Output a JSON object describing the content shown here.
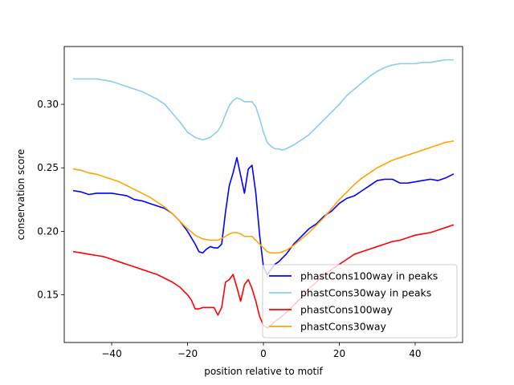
{
  "chart_data": {
    "type": "line",
    "title": "",
    "xlabel": "position relative to motif",
    "ylabel": "conservation score",
    "xlim": [
      -52.5,
      52.5
    ],
    "ylim": [
      0.1125,
      0.3455
    ],
    "xticks": [
      -40,
      -20,
      0,
      20,
      40
    ],
    "xtick_labels": [
      "−40",
      "−20",
      "0",
      "20",
      "40"
    ],
    "yticks": [
      0.15,
      0.2,
      0.25,
      0.3
    ],
    "ytick_labels": [
      "0.15",
      "0.20",
      "0.25",
      "0.30"
    ],
    "legend_position": "lower-right",
    "series": [
      {
        "name": "phastCons100way in peaks",
        "color": "#0000ff",
        "points": [
          [
            -50,
            0.232
          ],
          [
            -48,
            0.231
          ],
          [
            -46,
            0.229
          ],
          [
            -44,
            0.23
          ],
          [
            -42,
            0.23
          ],
          [
            -40,
            0.23
          ],
          [
            -38,
            0.229
          ],
          [
            -36,
            0.228
          ],
          [
            -34,
            0.225
          ],
          [
            -32,
            0.224
          ],
          [
            -30,
            0.222
          ],
          [
            -28,
            0.22
          ],
          [
            -26,
            0.218
          ],
          [
            -24,
            0.214
          ],
          [
            -22,
            0.208
          ],
          [
            -20,
            0.2
          ],
          [
            -18,
            0.19
          ],
          [
            -17,
            0.184
          ],
          [
            -16,
            0.183
          ],
          [
            -15,
            0.186
          ],
          [
            -14,
            0.188
          ],
          [
            -13,
            0.187
          ],
          [
            -12,
            0.187
          ],
          [
            -11,
            0.19
          ],
          [
            -10,
            0.215
          ],
          [
            -9,
            0.236
          ],
          [
            -8,
            0.246
          ],
          [
            -7,
            0.258
          ],
          [
            -6,
            0.244
          ],
          [
            -5,
            0.23
          ],
          [
            -4,
            0.249
          ],
          [
            -3,
            0.252
          ],
          [
            -2,
            0.23
          ],
          [
            -1,
            0.197
          ],
          [
            0,
            0.172
          ],
          [
            1,
            0.166
          ],
          [
            2,
            0.17
          ],
          [
            3,
            0.174
          ],
          [
            4,
            0.176
          ],
          [
            6,
            0.182
          ],
          [
            8,
            0.19
          ],
          [
            10,
            0.196
          ],
          [
            12,
            0.202
          ],
          [
            14,
            0.206
          ],
          [
            16,
            0.212
          ],
          [
            18,
            0.216
          ],
          [
            20,
            0.222
          ],
          [
            22,
            0.226
          ],
          [
            24,
            0.228
          ],
          [
            26,
            0.232
          ],
          [
            28,
            0.236
          ],
          [
            30,
            0.24
          ],
          [
            32,
            0.241
          ],
          [
            34,
            0.241
          ],
          [
            36,
            0.238
          ],
          [
            38,
            0.238
          ],
          [
            40,
            0.239
          ],
          [
            42,
            0.24
          ],
          [
            44,
            0.241
          ],
          [
            46,
            0.24
          ],
          [
            48,
            0.242
          ],
          [
            50,
            0.245
          ]
        ]
      },
      {
        "name": "phastCons30way in peaks",
        "color": "#87ceeb",
        "points": [
          [
            -50,
            0.32
          ],
          [
            -48,
            0.32
          ],
          [
            -46,
            0.32
          ],
          [
            -44,
            0.32
          ],
          [
            -42,
            0.319
          ],
          [
            -40,
            0.318
          ],
          [
            -38,
            0.316
          ],
          [
            -36,
            0.314
          ],
          [
            -34,
            0.312
          ],
          [
            -32,
            0.31
          ],
          [
            -30,
            0.307
          ],
          [
            -28,
            0.304
          ],
          [
            -26,
            0.3
          ],
          [
            -24,
            0.293
          ],
          [
            -22,
            0.286
          ],
          [
            -20,
            0.278
          ],
          [
            -18,
            0.274
          ],
          [
            -16,
            0.272
          ],
          [
            -14,
            0.274
          ],
          [
            -12,
            0.279
          ],
          [
            -11,
            0.284
          ],
          [
            -10,
            0.292
          ],
          [
            -9,
            0.299
          ],
          [
            -8,
            0.303
          ],
          [
            -7,
            0.305
          ],
          [
            -6,
            0.304
          ],
          [
            -5,
            0.302
          ],
          [
            -4,
            0.302
          ],
          [
            -3,
            0.302
          ],
          [
            -2,
            0.298
          ],
          [
            -1,
            0.289
          ],
          [
            0,
            0.278
          ],
          [
            1,
            0.27
          ],
          [
            2,
            0.267
          ],
          [
            3,
            0.265
          ],
          [
            4,
            0.265
          ],
          [
            5,
            0.264
          ],
          [
            6,
            0.265
          ],
          [
            8,
            0.268
          ],
          [
            10,
            0.272
          ],
          [
            12,
            0.276
          ],
          [
            14,
            0.282
          ],
          [
            16,
            0.288
          ],
          [
            18,
            0.294
          ],
          [
            20,
            0.3
          ],
          [
            22,
            0.307
          ],
          [
            24,
            0.312
          ],
          [
            26,
            0.317
          ],
          [
            28,
            0.322
          ],
          [
            30,
            0.326
          ],
          [
            32,
            0.329
          ],
          [
            34,
            0.331
          ],
          [
            36,
            0.332
          ],
          [
            38,
            0.332
          ],
          [
            40,
            0.332
          ],
          [
            42,
            0.333
          ],
          [
            44,
            0.333
          ],
          [
            46,
            0.334
          ],
          [
            48,
            0.335
          ],
          [
            50,
            0.335
          ]
        ]
      },
      {
        "name": "phastCons100way",
        "color": "#ff0000",
        "points": [
          [
            -50,
            0.184
          ],
          [
            -48,
            0.183
          ],
          [
            -46,
            0.182
          ],
          [
            -44,
            0.181
          ],
          [
            -42,
            0.18
          ],
          [
            -40,
            0.178
          ],
          [
            -38,
            0.176
          ],
          [
            -36,
            0.174
          ],
          [
            -34,
            0.172
          ],
          [
            -32,
            0.17
          ],
          [
            -30,
            0.168
          ],
          [
            -28,
            0.166
          ],
          [
            -26,
            0.163
          ],
          [
            -24,
            0.16
          ],
          [
            -22,
            0.156
          ],
          [
            -20,
            0.15
          ],
          [
            -19,
            0.146
          ],
          [
            -18,
            0.139
          ],
          [
            -17,
            0.139
          ],
          [
            -16,
            0.14
          ],
          [
            -15,
            0.14
          ],
          [
            -14,
            0.14
          ],
          [
            -13,
            0.14
          ],
          [
            -12,
            0.134
          ],
          [
            -11,
            0.14
          ],
          [
            -10,
            0.16
          ],
          [
            -9,
            0.162
          ],
          [
            -8,
            0.166
          ],
          [
            -7,
            0.156
          ],
          [
            -6,
            0.145
          ],
          [
            -5,
            0.158
          ],
          [
            -4,
            0.162
          ],
          [
            -3,
            0.155
          ],
          [
            -2,
            0.145
          ],
          [
            -1,
            0.133
          ],
          [
            0,
            0.126
          ],
          [
            1,
            0.124
          ],
          [
            2,
            0.126
          ],
          [
            3,
            0.129
          ],
          [
            4,
            0.131
          ],
          [
            6,
            0.136
          ],
          [
            8,
            0.142
          ],
          [
            10,
            0.148
          ],
          [
            12,
            0.155
          ],
          [
            14,
            0.16
          ],
          [
            16,
            0.166
          ],
          [
            18,
            0.17
          ],
          [
            20,
            0.174
          ],
          [
            22,
            0.178
          ],
          [
            24,
            0.182
          ],
          [
            26,
            0.184
          ],
          [
            28,
            0.186
          ],
          [
            30,
            0.188
          ],
          [
            32,
            0.19
          ],
          [
            34,
            0.192
          ],
          [
            36,
            0.193
          ],
          [
            38,
            0.195
          ],
          [
            40,
            0.197
          ],
          [
            42,
            0.198
          ],
          [
            44,
            0.199
          ],
          [
            46,
            0.201
          ],
          [
            48,
            0.203
          ],
          [
            50,
            0.205
          ]
        ]
      },
      {
        "name": "phastCons30way",
        "color": "#ffa500",
        "points": [
          [
            -50,
            0.249
          ],
          [
            -48,
            0.248
          ],
          [
            -46,
            0.246
          ],
          [
            -44,
            0.245
          ],
          [
            -42,
            0.243
          ],
          [
            -40,
            0.241
          ],
          [
            -38,
            0.239
          ],
          [
            -36,
            0.236
          ],
          [
            -34,
            0.233
          ],
          [
            -32,
            0.23
          ],
          [
            -30,
            0.227
          ],
          [
            -28,
            0.223
          ],
          [
            -26,
            0.219
          ],
          [
            -24,
            0.214
          ],
          [
            -22,
            0.208
          ],
          [
            -20,
            0.202
          ],
          [
            -18,
            0.197
          ],
          [
            -16,
            0.194
          ],
          [
            -14,
            0.193
          ],
          [
            -12,
            0.193
          ],
          [
            -10,
            0.196
          ],
          [
            -9,
            0.198
          ],
          [
            -8,
            0.199
          ],
          [
            -7,
            0.199
          ],
          [
            -6,
            0.198
          ],
          [
            -5,
            0.196
          ],
          [
            -4,
            0.196
          ],
          [
            -3,
            0.196
          ],
          [
            -2,
            0.193
          ],
          [
            -1,
            0.19
          ],
          [
            0,
            0.187
          ],
          [
            1,
            0.184
          ],
          [
            2,
            0.183
          ],
          [
            3,
            0.183
          ],
          [
            4,
            0.183
          ],
          [
            5,
            0.184
          ],
          [
            6,
            0.185
          ],
          [
            8,
            0.189
          ],
          [
            10,
            0.194
          ],
          [
            12,
            0.199
          ],
          [
            14,
            0.205
          ],
          [
            16,
            0.211
          ],
          [
            18,
            0.218
          ],
          [
            20,
            0.225
          ],
          [
            22,
            0.231
          ],
          [
            24,
            0.237
          ],
          [
            26,
            0.242
          ],
          [
            28,
            0.246
          ],
          [
            30,
            0.25
          ],
          [
            32,
            0.253
          ],
          [
            34,
            0.256
          ],
          [
            36,
            0.258
          ],
          [
            38,
            0.26
          ],
          [
            40,
            0.262
          ],
          [
            42,
            0.264
          ],
          [
            44,
            0.266
          ],
          [
            46,
            0.268
          ],
          [
            48,
            0.27
          ],
          [
            50,
            0.271
          ]
        ]
      }
    ]
  }
}
